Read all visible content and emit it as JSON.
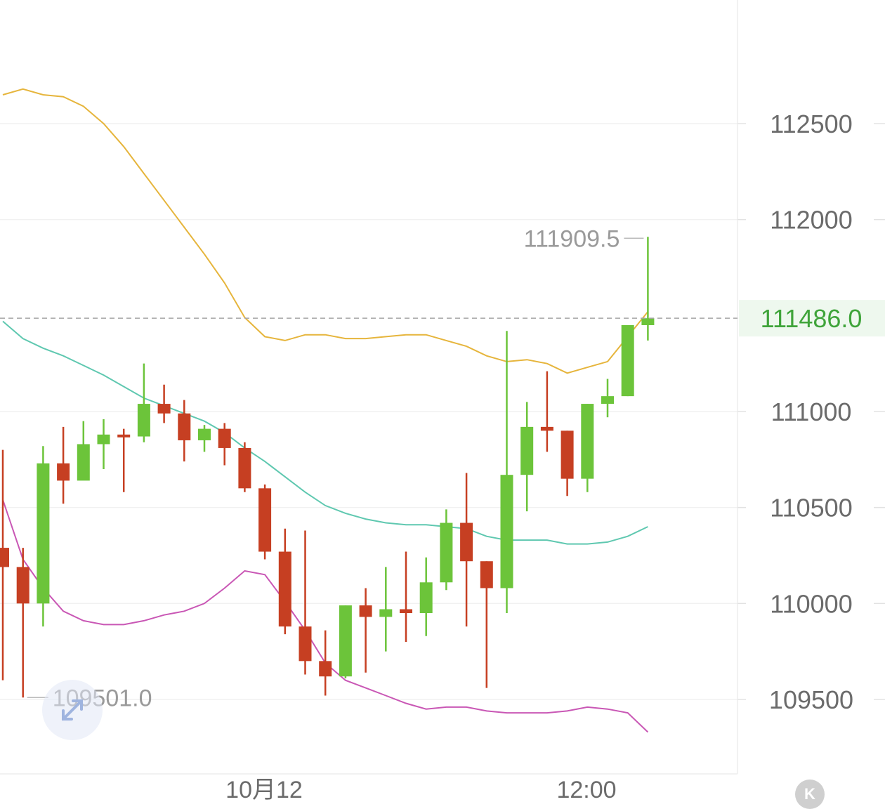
{
  "chart_data": {
    "type": "candlestick",
    "y_ticks": [
      "112500",
      "112000",
      "111000",
      "110500",
      "110000",
      "109500"
    ],
    "x_tick_labels": [
      "10月12",
      "12:00"
    ],
    "ylim": [
      109200,
      113100
    ],
    "last_price": 111486.0,
    "last_price_label": "111486.0",
    "high_marker_label": "111909.5",
    "low_marker_label": "109501.0",
    "colors": {
      "up": "#6cc43a",
      "down": "#c63f22",
      "upper_band": "#e6b53c",
      "middle_band": "#5fc8b0",
      "lower_band": "#c957b5",
      "last_price": "#3fa43a"
    },
    "candles": [
      {
        "open": 110290,
        "high": 110800,
        "low": 109600,
        "close": 110190
      },
      {
        "open": 110190,
        "high": 110290,
        "low": 109510,
        "close": 110000
      },
      {
        "open": 110000,
        "high": 110820,
        "low": 109880,
        "close": 110730
      },
      {
        "open": 110730,
        "high": 110920,
        "low": 110520,
        "close": 110640
      },
      {
        "open": 110640,
        "high": 110950,
        "low": 110650,
        "close": 110830
      },
      {
        "open": 110830,
        "high": 110960,
        "low": 110700,
        "close": 110880
      },
      {
        "open": 110880,
        "high": 110910,
        "low": 110580,
        "close": 110870
      },
      {
        "open": 110870,
        "high": 111250,
        "low": 110840,
        "close": 111040
      },
      {
        "open": 111040,
        "high": 111140,
        "low": 110940,
        "close": 110990
      },
      {
        "open": 110990,
        "high": 111060,
        "low": 110740,
        "close": 110850
      },
      {
        "open": 110850,
        "high": 110930,
        "low": 110790,
        "close": 110910
      },
      {
        "open": 110910,
        "high": 110940,
        "low": 110720,
        "close": 110810
      },
      {
        "open": 110810,
        "high": 110840,
        "low": 110580,
        "close": 110600
      },
      {
        "open": 110600,
        "high": 110620,
        "low": 110230,
        "close": 110270
      },
      {
        "open": 110270,
        "high": 110390,
        "low": 109840,
        "close": 109880
      },
      {
        "open": 109880,
        "high": 110380,
        "low": 109630,
        "close": 109700
      },
      {
        "open": 109700,
        "high": 109860,
        "low": 109520,
        "close": 109620
      },
      {
        "open": 109620,
        "high": 109990,
        "low": 109610,
        "close": 109990
      },
      {
        "open": 109990,
        "high": 110080,
        "low": 109640,
        "close": 109930
      },
      {
        "open": 109930,
        "high": 110190,
        "low": 109750,
        "close": 109970
      },
      {
        "open": 109970,
        "high": 110270,
        "low": 109800,
        "close": 109950
      },
      {
        "open": 109950,
        "high": 110240,
        "low": 109830,
        "close": 110110
      },
      {
        "open": 110110,
        "high": 110490,
        "low": 110070,
        "close": 110420
      },
      {
        "open": 110420,
        "high": 110680,
        "low": 109880,
        "close": 110220
      },
      {
        "open": 110220,
        "high": 110220,
        "low": 109560,
        "close": 110080
      },
      {
        "open": 110080,
        "high": 111420,
        "low": 109950,
        "close": 110670
      },
      {
        "open": 110670,
        "high": 111050,
        "low": 110480,
        "close": 110920
      },
      {
        "open": 110920,
        "high": 111210,
        "low": 110790,
        "close": 110900
      },
      {
        "open": 110900,
        "high": 110900,
        "low": 110560,
        "close": 110650
      },
      {
        "open": 110650,
        "high": 111040,
        "low": 110580,
        "close": 111040
      },
      {
        "open": 111040,
        "high": 111170,
        "low": 110970,
        "close": 111080
      },
      {
        "open": 111080,
        "high": 111450,
        "low": 111080,
        "close": 111450
      },
      {
        "open": 111450,
        "high": 111910,
        "low": 111370,
        "close": 111486
      }
    ],
    "bollinger": {
      "upper": [
        112650,
        112680,
        112650,
        112640,
        112590,
        112500,
        112380,
        112240,
        112100,
        111960,
        111820,
        111670,
        111490,
        111390,
        111370,
        111400,
        111400,
        111380,
        111380,
        111390,
        111400,
        111400,
        111370,
        111340,
        111290,
        111260,
        111270,
        111250,
        111200,
        111230,
        111260,
        111390,
        111520
      ],
      "middle": [
        111470,
        111380,
        111330,
        111290,
        111240,
        111190,
        111130,
        111070,
        111030,
        110990,
        110950,
        110890,
        110810,
        110740,
        110660,
        110580,
        110510,
        110470,
        110440,
        110420,
        110410,
        110410,
        110400,
        110390,
        110350,
        110330,
        110330,
        110330,
        110310,
        110310,
        110320,
        110350,
        110400
      ],
      "lower": [
        110540,
        110230,
        110080,
        109960,
        109910,
        109890,
        109890,
        109910,
        109940,
        109960,
        110000,
        110080,
        110170,
        110150,
        110010,
        109860,
        109690,
        109600,
        109560,
        109520,
        109480,
        109450,
        109460,
        109460,
        109440,
        109430,
        109430,
        109430,
        109440,
        109460,
        109450,
        109430,
        109330
      ]
    }
  }
}
